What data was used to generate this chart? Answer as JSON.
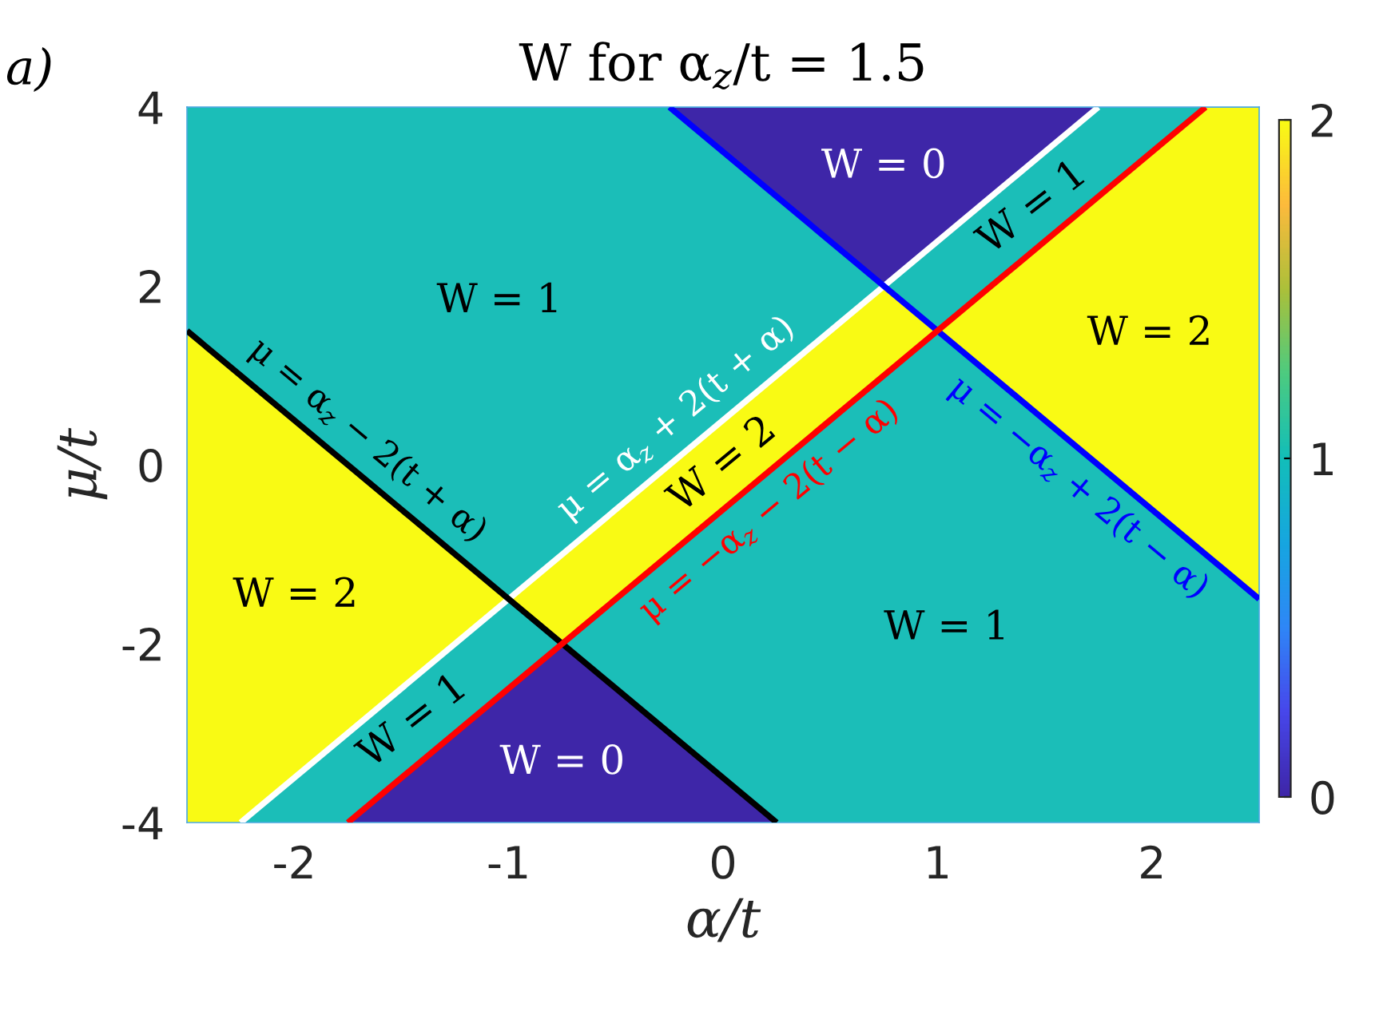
{
  "chart_data": {
    "type": "area",
    "title": "W for α$_{z}$/t = 1.5",
    "xlabel": "α/t",
    "ylabel": "μ/t",
    "xlim": [
      -2.5,
      2.5
    ],
    "ylim": [
      -4,
      4
    ],
    "xticks": [
      -2,
      -1,
      0,
      1,
      2
    ],
    "yticks": [
      -4,
      -2,
      0,
      2,
      4
    ],
    "clim": [
      0,
      2
    ],
    "cticks": [
      0,
      1,
      2
    ],
    "series": [
      {
        "color": "#1bbeb8",
        "x": [
          -2.5,
          -1,
          -0.25,
          0.75
        ],
        "values": [
          null,
          null,
          null,
          null
        ],
        "lower": [
          1.5,
          -1.5,
          0,
          2
        ],
        "upper": [
          4,
          4,
          4,
          2
        ]
      },
      {
        "color": "#3e26a8",
        "x": [
          -0.25,
          0.75,
          1.75
        ],
        "values": [
          null,
          null,
          null
        ],
        "lower": [
          4,
          2,
          4
        ],
        "upper": [
          4,
          4,
          4
        ]
      },
      {
        "color": "#1bbeb8",
        "x": [
          0.75,
          1,
          1.75,
          2.25
        ],
        "values": [
          null,
          null,
          null,
          null
        ],
        "lower": [
          2,
          1.5,
          3,
          4
        ],
        "upper": [
          2,
          2.5,
          4,
          4
        ]
      },
      {
        "color": "#f9fa14",
        "x": [
          1,
          2.25,
          2.5
        ],
        "values": [
          null,
          null,
          null
        ],
        "lower": [
          1.5,
          -1,
          -1.5
        ],
        "upper": [
          1.5,
          4,
          4
        ]
      },
      {
        "color": "#f9fa14",
        "x": [
          -2.5,
          -2.25,
          -1
        ],
        "values": [
          null,
          null,
          null
        ],
        "lower": [
          -4,
          -4,
          -1.5
        ],
        "upper": [
          1.5,
          1,
          -1.5
        ]
      },
      {
        "color": "#f9fa14",
        "x": [
          -1,
          -0.75,
          0.75,
          1
        ],
        "values": [
          null,
          null,
          null,
          null
        ],
        "lower": [
          -1.5,
          -2,
          1,
          1.5
        ],
        "upper": [
          -1.5,
          -1,
          2,
          1.5
        ]
      },
      {
        "color": "#1bbeb8",
        "x": [
          -2.25,
          -1.75,
          -1,
          -0.75
        ],
        "values": [
          null,
          null,
          null,
          null
        ],
        "lower": [
          -4,
          -4,
          -2.5,
          -2
        ],
        "upper": [
          -4,
          -3,
          -1.5,
          -2
        ]
      },
      {
        "color": "#3e26a8",
        "x": [
          -1.75,
          -0.75,
          0.25
        ],
        "values": [
          null,
          null,
          null
        ],
        "lower": [
          -4,
          -4,
          -4
        ],
        "upper": [
          -4,
          -2,
          -4
        ]
      },
      {
        "color": "#1bbeb8",
        "x": [
          -0.75,
          0.25,
          1,
          2.5
        ],
        "values": [
          null,
          null,
          null,
          null
        ],
        "lower": [
          -2,
          -4,
          -4,
          -4
        ],
        "upper": [
          -2,
          0,
          1.5,
          -1.5
        ]
      },
      {
        "type": "line",
        "name": "μ = α$_{z}$ + 2(t + α)",
        "color": "#ffffff",
        "x": [
          -2.25,
          1.75
        ],
        "values": [
          -4,
          4
        ]
      },
      {
        "type": "line",
        "name": "μ = α$_{z}$ − 2(t + α)",
        "color": "#000000",
        "x": [
          -2.5,
          0.25
        ],
        "values": [
          1.5,
          -4
        ]
      },
      {
        "type": "line",
        "name": "μ = −α$_{z}$ + 2(t − α)",
        "color": "#0000ff",
        "x": [
          -0.25,
          2.5
        ],
        "values": [
          4,
          -1.5
        ]
      },
      {
        "type": "line",
        "name": "μ = −α$_{z}$ − 2(t − α)",
        "color": "#ff0000",
        "x": [
          -1.75,
          2.25
        ],
        "values": [
          -4,
          4
        ]
      }
    ],
    "annotations": [
      "a)",
      "W = 1",
      "W = 0",
      "W = 1",
      "W = 2",
      "W = 2",
      "W = 2",
      "W = 1",
      "W = 0",
      "W = 1"
    ]
  }
}
